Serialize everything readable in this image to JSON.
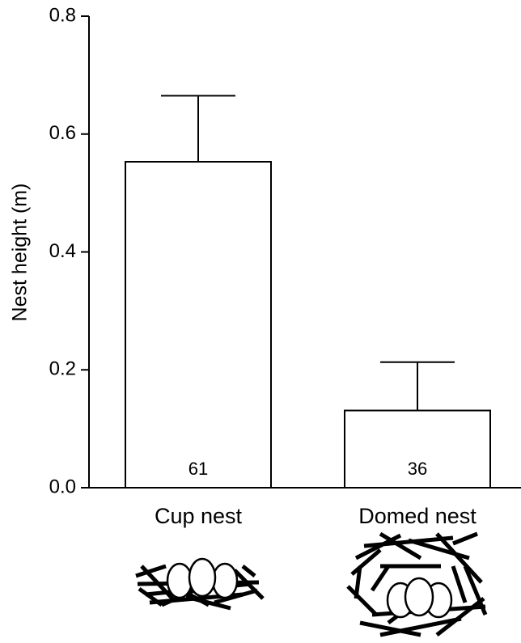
{
  "chart_data": {
    "type": "bar",
    "y_label": "Nest height (m)",
    "categories": [
      "Cup nest",
      "Domed nest"
    ],
    "values": [
      0.553,
      0.131
    ],
    "errors": [
      0.112,
      0.082
    ],
    "sample_sizes": [
      61,
      36
    ],
    "color": "#ffffff",
    "ylim": [
      0,
      0.8
    ],
    "yticks": [
      {
        "value": 0,
        "label": "0.0"
      },
      0.2,
      0.4,
      0.6,
      0.8
    ]
  }
}
